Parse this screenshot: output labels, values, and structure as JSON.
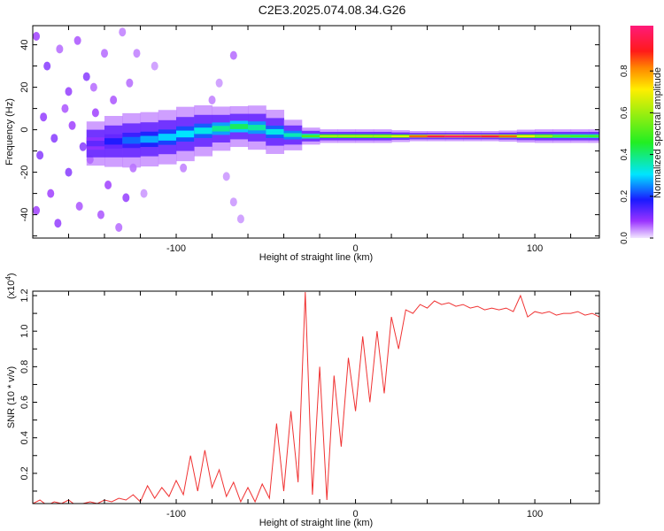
{
  "chart_data": [
    {
      "type": "heatmap",
      "title": "C2E3.2025.074.08.34.G26",
      "xlabel": "Height of straight line (km)",
      "ylabel": "Frequency (Hz)",
      "xlim": [
        -180,
        136
      ],
      "ylim": [
        -51,
        49
      ],
      "xticks": [
        -100,
        0,
        100
      ],
      "yticks": [
        -40,
        -20,
        0,
        20,
        40
      ],
      "colorbar": {
        "label": "Normalized spectral amplitude",
        "ticks": [
          "0.0",
          "0.2",
          "0.4",
          "0.6",
          "0.8"
        ],
        "range": [
          0,
          1
        ]
      },
      "ridge": [
        {
          "x": -150,
          "f": -7,
          "amp": 0.1,
          "spread": 6
        },
        {
          "x": -140,
          "f": -6,
          "amp": 0.15,
          "spread": 7
        },
        {
          "x": -130,
          "f": -5,
          "amp": 0.2,
          "spread": 8
        },
        {
          "x": -120,
          "f": -5,
          "amp": 0.25,
          "spread": 8
        },
        {
          "x": -110,
          "f": -4,
          "amp": 0.28,
          "spread": 8
        },
        {
          "x": -100,
          "f": -3,
          "amp": 0.3,
          "spread": 8
        },
        {
          "x": -90,
          "f": -1,
          "amp": 0.3,
          "spread": 8
        },
        {
          "x": -80,
          "f": 0,
          "amp": 0.33,
          "spread": 7
        },
        {
          "x": -70,
          "f": 1,
          "amp": 0.42,
          "spread": 6
        },
        {
          "x": -60,
          "f": 2,
          "amp": 0.4,
          "spread": 6
        },
        {
          "x": -50,
          "f": 0,
          "amp": 0.33,
          "spread": 7
        },
        {
          "x": -40,
          "f": -2,
          "amp": 0.3,
          "spread": 6
        },
        {
          "x": -30,
          "f": -3,
          "amp": 0.4,
          "spread": 3
        },
        {
          "x": -20,
          "f": -3,
          "amp": 0.6,
          "spread": 2
        },
        {
          "x": -10,
          "f": -3,
          "amp": 0.65,
          "spread": 2
        },
        {
          "x": 0,
          "f": -3,
          "amp": 0.6,
          "spread": 2
        },
        {
          "x": 10,
          "f": -3,
          "amp": 0.65,
          "spread": 2
        },
        {
          "x": 20,
          "f": -3,
          "amp": 0.6,
          "spread": 2
        },
        {
          "x": 30,
          "f": -3,
          "amp": 0.75,
          "spread": 1.5
        },
        {
          "x": 40,
          "f": -3,
          "amp": 0.9,
          "spread": 1.5
        },
        {
          "x": 50,
          "f": -3,
          "amp": 0.98,
          "spread": 1.5
        },
        {
          "x": 60,
          "f": -3,
          "amp": 0.98,
          "spread": 1.5
        },
        {
          "x": 70,
          "f": -3,
          "amp": 0.95,
          "spread": 1.5
        },
        {
          "x": 80,
          "f": -3,
          "amp": 0.9,
          "spread": 1.5
        },
        {
          "x": 90,
          "f": -3,
          "amp": 0.75,
          "spread": 1.8
        },
        {
          "x": 100,
          "f": -3,
          "amp": 0.65,
          "spread": 2
        },
        {
          "x": 110,
          "f": -3,
          "amp": 0.55,
          "spread": 2
        },
        {
          "x": 120,
          "f": -3,
          "amp": 0.5,
          "spread": 2
        },
        {
          "x": 130,
          "f": -3,
          "amp": 0.5,
          "spread": 2
        },
        {
          "x": 136,
          "f": -3,
          "amp": 0.5,
          "spread": 2
        }
      ],
      "scatter": [
        [
          -178,
          44,
          0.08
        ],
        [
          -172,
          30,
          0.1
        ],
        [
          -165,
          38,
          0.06
        ],
        [
          -160,
          18,
          0.09
        ],
        [
          -155,
          42,
          0.07
        ],
        [
          -150,
          25,
          0.1
        ],
        [
          -145,
          8,
          0.08
        ],
        [
          -140,
          36,
          0.06
        ],
        [
          -135,
          14,
          0.07
        ],
        [
          -130,
          46,
          0.05
        ],
        [
          -126,
          22,
          0.06
        ],
        [
          -176,
          -12,
          0.1
        ],
        [
          -170,
          -30,
          0.08
        ],
        [
          -166,
          -44,
          0.09
        ],
        [
          -160,
          -20,
          0.1
        ],
        [
          -154,
          -36,
          0.07
        ],
        [
          -148,
          -14,
          0.09
        ],
        [
          -142,
          -40,
          0.07
        ],
        [
          -138,
          -26,
          0.08
        ],
        [
          -132,
          -46,
          0.06
        ],
        [
          -128,
          -32,
          0.09
        ],
        [
          -124,
          -18,
          0.06
        ],
        [
          -174,
          6,
          0.09
        ],
        [
          -168,
          -4,
          0.1
        ],
        [
          -158,
          2,
          0.08
        ],
        [
          -152,
          -8,
          0.1
        ],
        [
          -146,
          20,
          0.06
        ],
        [
          -136,
          -6,
          0.09
        ],
        [
          -162,
          10,
          0.07
        ],
        [
          -178,
          -38,
          0.08
        ],
        [
          -122,
          36,
          0.05
        ],
        [
          -118,
          -30,
          0.04
        ],
        [
          -80,
          14,
          0.05
        ],
        [
          -76,
          22,
          0.04
        ],
        [
          -72,
          -22,
          0.04
        ],
        [
          -68,
          -34,
          0.04
        ],
        [
          -68,
          35,
          0.06
        ],
        [
          -112,
          30,
          0.04
        ],
        [
          -96,
          -18,
          0.05
        ],
        [
          -64,
          -42,
          0.04
        ]
      ]
    },
    {
      "type": "line",
      "xlabel": "Height of straight line (km)",
      "ylabel": "SNR (10 * v/v)",
      "yscale_label": "(x10",
      "yscale_exp": "4",
      "xlim": [
        -180,
        136
      ],
      "ylim": [
        0.03,
        1.225
      ],
      "xticks": [
        -100,
        0,
        100
      ],
      "yticks": [
        "0.2",
        "0.4",
        "0.6",
        "0.8",
        "1.0",
        "1.2"
      ],
      "series": [
        {
          "name": "SNR",
          "color": "#f03232",
          "x": [
            -180,
            -176,
            -172,
            -168,
            -164,
            -160,
            -156,
            -152,
            -148,
            -144,
            -140,
            -136,
            -132,
            -128,
            -124,
            -120,
            -116,
            -112,
            -108,
            -104,
            -100,
            -96,
            -92,
            -88,
            -84,
            -80,
            -76,
            -72,
            -68,
            -64,
            -60,
            -56,
            -52,
            -48,
            -44,
            -40,
            -36,
            -32,
            -28,
            -24,
            -20,
            -16,
            -12,
            -8,
            -4,
            0,
            4,
            8,
            12,
            16,
            20,
            24,
            28,
            32,
            36,
            40,
            44,
            48,
            52,
            56,
            60,
            64,
            68,
            72,
            76,
            80,
            84,
            88,
            92,
            96,
            100,
            104,
            108,
            112,
            116,
            120,
            124,
            128,
            132,
            136
          ],
          "y": [
            0.03,
            0.05,
            0.02,
            0.04,
            0.03,
            0.05,
            0.02,
            0.03,
            0.04,
            0.03,
            0.05,
            0.04,
            0.06,
            0.05,
            0.08,
            0.04,
            0.13,
            0.06,
            0.12,
            0.07,
            0.16,
            0.08,
            0.3,
            0.1,
            0.33,
            0.12,
            0.22,
            0.07,
            0.15,
            0.04,
            0.12,
            0.04,
            0.14,
            0.06,
            0.48,
            0.1,
            0.55,
            0.15,
            1.22,
            0.08,
            0.8,
            0.05,
            0.75,
            0.35,
            0.85,
            0.55,
            0.97,
            0.6,
            1.0,
            0.65,
            1.08,
            0.9,
            1.12,
            1.1,
            1.15,
            1.13,
            1.17,
            1.15,
            1.16,
            1.14,
            1.15,
            1.13,
            1.14,
            1.12,
            1.13,
            1.12,
            1.13,
            1.11,
            1.2,
            1.08,
            1.11,
            1.1,
            1.11,
            1.09,
            1.1,
            1.1,
            1.11,
            1.09,
            1.1,
            1.08
          ]
        }
      ]
    }
  ]
}
